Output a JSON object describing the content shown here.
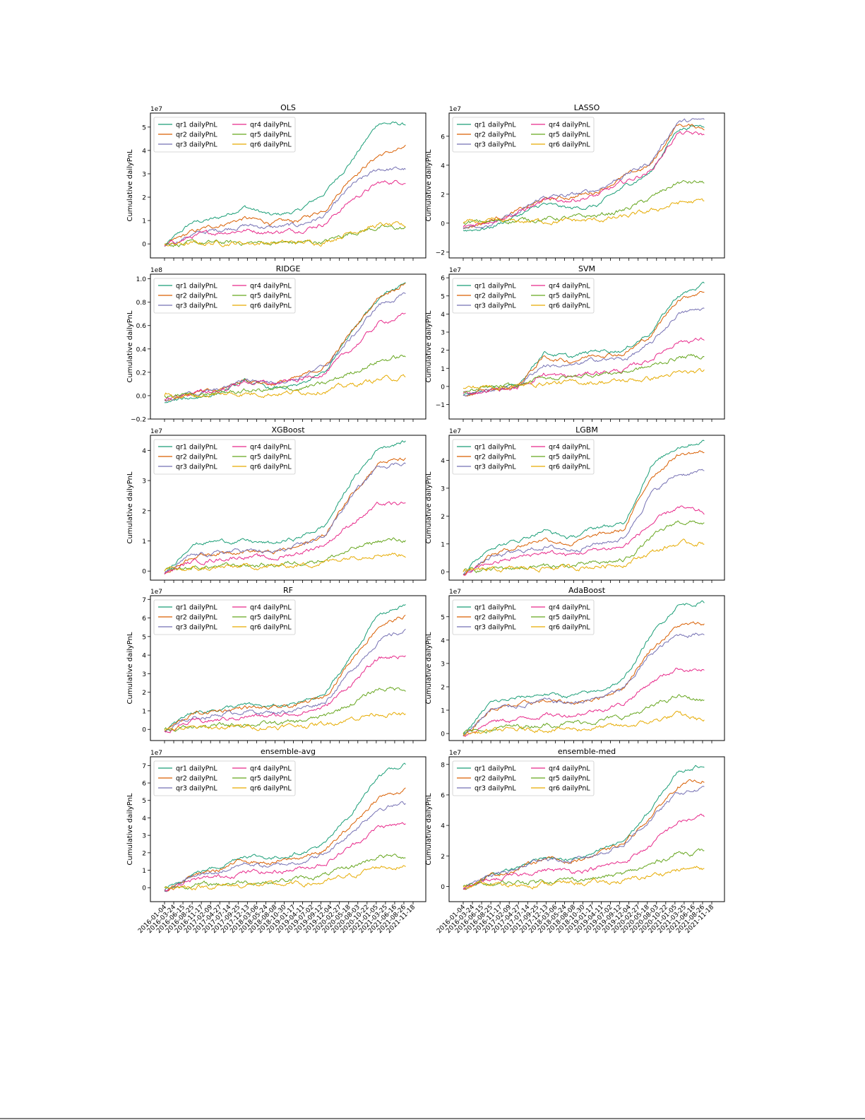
{
  "series_names": [
    "qr1 dailyPnL",
    "qr2 dailyPnL",
    "qr3 dailyPnL",
    "qr4 dailyPnL",
    "qr5 dailyPnL",
    "qr6 dailyPnL"
  ],
  "colors": [
    "#1b9e77",
    "#d95f02",
    "#7570b3",
    "#e7298a",
    "#66a61e",
    "#e6ab02"
  ],
  "ylabel": "Cumulative dailyPnL",
  "x_tick_labels": [
    "2016-01-04",
    "2016-03-24",
    "2016-06-15",
    "2016-08-25",
    "2016-11-17",
    "2017-02-09",
    "2017-04-27",
    "2017-07-14",
    "2017-09-25",
    "2017-12-13",
    "2018-03-06",
    "2018-05-24",
    "2018-08-08",
    "2018-10-30",
    "2019-01-17",
    "2019-04-11",
    "2019-07-02",
    "2019-09-12",
    "2019-12-04",
    "2020-02-27",
    "2020-05-18",
    "2020-08-03",
    "2020-10-22",
    "2021-01-05",
    "2021-03-25",
    "2021-06-16",
    "2021-08-26",
    "2021-11-18"
  ],
  "chart_data": [
    {
      "type": "line",
      "title": "OLS",
      "ylabel": "Cumulative dailyPnL",
      "offset_text": "1e7",
      "ylim": [
        -0.6,
        5.6
      ],
      "yticks": [
        0,
        1,
        2,
        3,
        4,
        5
      ],
      "legend": "upper left",
      "series": [
        {
          "name": "qr1 dailyPnL",
          "values": [
            -0.1,
            0.9,
            1.1,
            1.6,
            1.2,
            1.4,
            2.2,
            3.6,
            5.2,
            5.1
          ]
        },
        {
          "name": "qr2 dailyPnL",
          "values": [
            -0.1,
            0.5,
            0.8,
            1.1,
            0.9,
            1.0,
            1.5,
            2.9,
            3.8,
            4.1
          ]
        },
        {
          "name": "qr3 dailyPnL",
          "values": [
            -0.1,
            0.4,
            0.6,
            0.8,
            0.7,
            0.8,
            1.2,
            2.5,
            3.2,
            3.2
          ]
        },
        {
          "name": "qr4 dailyPnL",
          "values": [
            -0.1,
            0.3,
            0.5,
            0.6,
            0.5,
            0.6,
            0.9,
            1.9,
            2.6,
            2.7
          ]
        },
        {
          "name": "qr5 dailyPnL",
          "values": [
            0.0,
            0.0,
            0.05,
            0.05,
            0.05,
            0.05,
            0.1,
            0.5,
            0.7,
            0.65
          ]
        },
        {
          "name": "qr6 dailyPnL",
          "values": [
            0.0,
            0.0,
            0.05,
            0.05,
            0.05,
            0.05,
            0.1,
            0.55,
            0.8,
            0.75
          ]
        }
      ]
    },
    {
      "type": "line",
      "title": "LASSO",
      "ylabel": "Cumulative dailyPnL",
      "offset_text": "1e7",
      "ylim": [
        -2.4,
        7.6
      ],
      "yticks": [
        -2,
        0,
        2,
        4,
        6
      ],
      "legend": "upper left",
      "series": [
        {
          "name": "qr1 dailyPnL",
          "values": [
            -0.5,
            -0.3,
            0.5,
            1.3,
            1.0,
            1.2,
            2.5,
            3.5,
            6.5,
            6.8
          ]
        },
        {
          "name": "qr2 dailyPnL",
          "values": [
            -0.4,
            0.2,
            0.8,
            1.6,
            1.8,
            2.2,
            3.2,
            4.0,
            6.8,
            6.6
          ]
        },
        {
          "name": "qr3 dailyPnL",
          "values": [
            -0.4,
            0.0,
            0.6,
            1.8,
            1.9,
            2.3,
            3.3,
            4.2,
            7.0,
            7.1
          ]
        },
        {
          "name": "qr4 dailyPnL",
          "values": [
            -0.3,
            0.2,
            0.7,
            1.5,
            1.6,
            1.9,
            2.8,
            3.6,
            6.2,
            6.1
          ]
        },
        {
          "name": "qr5 dailyPnL",
          "values": [
            0.0,
            0.1,
            0.2,
            0.3,
            0.35,
            0.5,
            0.9,
            1.7,
            2.8,
            2.8
          ]
        },
        {
          "name": "qr6 dailyPnL",
          "values": [
            0.0,
            0.05,
            0.1,
            0.15,
            0.15,
            0.2,
            0.4,
            0.8,
            1.4,
            1.5
          ]
        }
      ]
    },
    {
      "type": "line",
      "title": "RIDGE",
      "ylabel": "Cumulative dailyPnL",
      "offset_text": "1e8",
      "ylim": [
        -0.2,
        1.04
      ],
      "yticks": [
        -0.2,
        0.0,
        0.2,
        0.4,
        0.6,
        0.8,
        1.0
      ],
      "legend": "upper left",
      "series": [
        {
          "name": "qr1 dailyPnL",
          "values": [
            -0.06,
            -0.02,
            0.02,
            0.12,
            0.06,
            0.08,
            0.2,
            0.55,
            0.85,
            0.98
          ]
        },
        {
          "name": "qr2 dailyPnL",
          "values": [
            -0.04,
            0.02,
            0.04,
            0.14,
            0.1,
            0.15,
            0.25,
            0.55,
            0.85,
            0.97
          ]
        },
        {
          "name": "qr3 dailyPnL",
          "values": [
            -0.04,
            0.02,
            0.04,
            0.14,
            0.12,
            0.15,
            0.25,
            0.5,
            0.78,
            0.86
          ]
        },
        {
          "name": "qr4 dailyPnL",
          "values": [
            -0.03,
            0.02,
            0.04,
            0.12,
            0.1,
            0.13,
            0.2,
            0.4,
            0.62,
            0.69
          ]
        },
        {
          "name": "qr5 dailyPnL",
          "values": [
            0.0,
            0.01,
            0.02,
            0.04,
            0.05,
            0.06,
            0.1,
            0.2,
            0.3,
            0.34
          ]
        },
        {
          "name": "qr6 dailyPnL",
          "values": [
            0.0,
            0.0,
            0.01,
            0.02,
            0.02,
            0.03,
            0.05,
            0.09,
            0.14,
            0.16
          ]
        }
      ]
    },
    {
      "type": "line",
      "title": "SVM",
      "ylabel": "Cumulative dailyPnL",
      "offset_text": "1e7",
      "ylim": [
        -1.8,
        6.2
      ],
      "yticks": [
        -1,
        0,
        1,
        2,
        3,
        4,
        5,
        6
      ],
      "legend": "upper left",
      "series": [
        {
          "name": "qr1 dailyPnL",
          "values": [
            -0.5,
            -0.2,
            0.0,
            1.9,
            1.6,
            2.0,
            2.0,
            3.0,
            5.0,
            5.6
          ]
        },
        {
          "name": "qr2 dailyPnL",
          "values": [
            -0.5,
            -0.2,
            0.0,
            1.6,
            1.4,
            1.8,
            1.8,
            2.8,
            4.8,
            5.3
          ]
        },
        {
          "name": "qr3 dailyPnL",
          "values": [
            -0.5,
            -0.2,
            0.0,
            1.2,
            1.1,
            1.5,
            1.5,
            2.3,
            4.0,
            4.3
          ]
        },
        {
          "name": "qr4 dailyPnL",
          "values": [
            -0.4,
            -0.2,
            -0.1,
            0.7,
            0.5,
            0.8,
            0.9,
            1.5,
            2.5,
            2.6
          ]
        },
        {
          "name": "qr5 dailyPnL",
          "values": [
            -0.3,
            -0.1,
            0.0,
            0.5,
            0.5,
            0.7,
            0.8,
            1.1,
            1.6,
            1.7
          ]
        },
        {
          "name": "qr6 dailyPnL",
          "values": [
            -0.1,
            0.0,
            0.0,
            0.2,
            0.2,
            0.25,
            0.3,
            0.45,
            0.7,
            0.8
          ]
        }
      ]
    },
    {
      "type": "line",
      "title": "XGBoost",
      "ylabel": "Cumulative dailyPnL",
      "offset_text": "1e7",
      "ylim": [
        -0.3,
        4.5
      ],
      "yticks": [
        0,
        1,
        2,
        3,
        4
      ],
      "legend": "upper left",
      "series": [
        {
          "name": "qr1 dailyPnL",
          "values": [
            -0.1,
            0.9,
            1.0,
            1.0,
            0.9,
            1.1,
            1.5,
            3.0,
            4.1,
            4.3
          ]
        },
        {
          "name": "qr2 dailyPnL",
          "values": [
            -0.1,
            0.5,
            0.6,
            0.7,
            0.6,
            0.8,
            1.2,
            2.6,
            3.6,
            3.7
          ]
        },
        {
          "name": "qr3 dailyPnL",
          "values": [
            -0.1,
            0.5,
            0.6,
            0.7,
            0.6,
            0.8,
            1.2,
            2.5,
            3.5,
            3.6
          ]
        },
        {
          "name": "qr4 dailyPnL",
          "values": [
            -0.1,
            0.3,
            0.4,
            0.5,
            0.4,
            0.6,
            0.9,
            1.6,
            2.2,
            2.2
          ]
        },
        {
          "name": "qr5 dailyPnL",
          "values": [
            0.0,
            0.1,
            0.15,
            0.2,
            0.2,
            0.3,
            0.4,
            0.7,
            1.0,
            1.05
          ]
        },
        {
          "name": "qr6 dailyPnL",
          "values": [
            0.0,
            0.05,
            0.1,
            0.15,
            0.15,
            0.2,
            0.3,
            0.5,
            0.6,
            0.55
          ]
        }
      ]
    },
    {
      "type": "line",
      "title": "LGBM",
      "ylabel": "Cumulative dailyPnL",
      "offset_text": "1e7",
      "ylim": [
        -0.3,
        4.9
      ],
      "yticks": [
        0,
        1,
        2,
        3,
        4
      ],
      "legend": "upper left",
      "series": [
        {
          "name": "qr1 dailyPnL",
          "values": [
            -0.1,
            0.9,
            1.1,
            1.5,
            1.2,
            1.6,
            1.7,
            3.8,
            4.5,
            4.7
          ]
        },
        {
          "name": "qr2 dailyPnL",
          "values": [
            -0.1,
            0.6,
            0.9,
            1.2,
            1.0,
            1.3,
            1.5,
            3.4,
            4.2,
            4.3
          ]
        },
        {
          "name": "qr3 dailyPnL",
          "values": [
            -0.1,
            0.5,
            0.7,
            0.9,
            0.8,
            1.0,
            1.2,
            2.8,
            3.5,
            3.6
          ]
        },
        {
          "name": "qr4 dailyPnL",
          "values": [
            -0.1,
            0.3,
            0.5,
            0.7,
            0.6,
            0.8,
            0.9,
            1.7,
            2.3,
            2.1
          ]
        },
        {
          "name": "qr5 dailyPnL",
          "values": [
            0.0,
            0.1,
            0.15,
            0.2,
            0.2,
            0.3,
            0.4,
            1.2,
            1.8,
            1.75
          ]
        },
        {
          "name": "qr6 dailyPnL",
          "values": [
            0.0,
            0.05,
            0.1,
            0.15,
            0.15,
            0.2,
            0.3,
            0.7,
            1.0,
            1.05
          ]
        }
      ]
    },
    {
      "type": "line",
      "title": "RF",
      "ylabel": "Cumulative dailyPnL",
      "offset_text": "1e7",
      "ylim": [
        -0.6,
        7.2
      ],
      "yticks": [
        0,
        1,
        2,
        3,
        4,
        5,
        6,
        7
      ],
      "legend": "upper left",
      "series": [
        {
          "name": "qr1 dailyPnL",
          "values": [
            -0.1,
            0.9,
            1.1,
            1.3,
            1.2,
            1.4,
            1.9,
            4.0,
            6.2,
            6.7
          ]
        },
        {
          "name": "qr2 dailyPnL",
          "values": [
            -0.1,
            0.8,
            1.0,
            1.2,
            1.1,
            1.3,
            1.8,
            3.8,
            5.6,
            6.1
          ]
        },
        {
          "name": "qr3 dailyPnL",
          "values": [
            -0.1,
            0.6,
            0.8,
            1.0,
            0.9,
            1.1,
            1.5,
            3.2,
            4.8,
            5.3
          ]
        },
        {
          "name": "qr4 dailyPnL",
          "values": [
            -0.1,
            0.4,
            0.5,
            0.7,
            0.7,
            0.9,
            1.2,
            2.5,
            3.8,
            4.0
          ]
        },
        {
          "name": "qr5 dailyPnL",
          "values": [
            0.0,
            0.1,
            0.2,
            0.3,
            0.3,
            0.4,
            0.7,
            1.4,
            2.2,
            2.2
          ]
        },
        {
          "name": "qr6 dailyPnL",
          "values": [
            0.0,
            0.05,
            0.1,
            0.15,
            0.15,
            0.2,
            0.3,
            0.6,
            0.9,
            0.75
          ]
        }
      ]
    },
    {
      "type": "line",
      "title": "AdaBoost",
      "ylabel": "Cumulative dailyPnL",
      "offset_text": "1e7",
      "ylim": [
        -0.3,
        5.9
      ],
      "yticks": [
        0,
        1,
        2,
        3,
        4,
        5
      ],
      "legend": "upper left",
      "series": [
        {
          "name": "qr1 dailyPnL",
          "values": [
            -0.1,
            1.3,
            1.5,
            1.7,
            1.6,
            1.8,
            2.3,
            4.2,
            5.5,
            5.6
          ]
        },
        {
          "name": "qr2 dailyPnL",
          "values": [
            -0.1,
            1.0,
            1.2,
            1.4,
            1.3,
            1.5,
            2.0,
            3.6,
            4.6,
            4.7
          ]
        },
        {
          "name": "qr3 dailyPnL",
          "values": [
            -0.1,
            1.0,
            1.2,
            1.4,
            1.3,
            1.5,
            1.9,
            3.4,
            4.2,
            4.3
          ]
        },
        {
          "name": "qr4 dailyPnL",
          "values": [
            -0.1,
            0.5,
            0.6,
            0.8,
            0.8,
            1.0,
            1.3,
            2.2,
            2.8,
            2.7
          ]
        },
        {
          "name": "qr5 dailyPnL",
          "values": [
            0.0,
            0.2,
            0.3,
            0.4,
            0.45,
            0.55,
            0.7,
            1.1,
            1.6,
            1.4
          ]
        },
        {
          "name": "qr6 dailyPnL",
          "values": [
            0.0,
            0.1,
            0.15,
            0.2,
            0.2,
            0.25,
            0.3,
            0.5,
            0.8,
            0.55
          ]
        }
      ]
    },
    {
      "type": "line",
      "title": "ensemble-avg",
      "ylabel": "Cumulative dailyPnL",
      "offset_text": "1e7",
      "ylim": [
        -0.8,
        7.5
      ],
      "yticks": [
        0,
        1,
        2,
        3,
        4,
        5,
        6,
        7
      ],
      "legend": "upper left",
      "series": [
        {
          "name": "qr1 dailyPnL",
          "values": [
            -0.2,
            0.8,
            1.2,
            1.9,
            1.7,
            2.0,
            2.5,
            4.3,
            6.5,
            7.0
          ]
        },
        {
          "name": "qr2 dailyPnL",
          "values": [
            -0.2,
            0.7,
            1.0,
            1.6,
            1.4,
            1.7,
            2.1,
            3.6,
            5.2,
            5.6
          ]
        },
        {
          "name": "qr3 dailyPnL",
          "values": [
            -0.2,
            0.6,
            0.9,
            1.4,
            1.2,
            1.5,
            1.9,
            3.2,
            4.6,
            4.8
          ]
        },
        {
          "name": "qr4 dailyPnL",
          "values": [
            -0.1,
            0.4,
            0.6,
            0.9,
            0.9,
            1.1,
            1.4,
            2.4,
            3.5,
            3.6
          ]
        },
        {
          "name": "qr5 dailyPnL",
          "values": [
            0.0,
            0.15,
            0.2,
            0.35,
            0.35,
            0.5,
            0.7,
            1.2,
            1.8,
            1.8
          ]
        },
        {
          "name": "qr6 dailyPnL",
          "values": [
            0.0,
            0.05,
            0.1,
            0.15,
            0.15,
            0.2,
            0.3,
            0.7,
            1.2,
            1.2
          ]
        }
      ]
    },
    {
      "type": "line",
      "title": "ensemble-med",
      "ylabel": "Cumulative dailyPnL",
      "offset_text": "1e7",
      "ylim": [
        -1.0,
        8.5
      ],
      "yticks": [
        0,
        2,
        4,
        6,
        8
      ],
      "legend": "upper left",
      "series": [
        {
          "name": "qr1 dailyPnL",
          "values": [
            -0.2,
            0.8,
            1.2,
            2.0,
            1.7,
            2.2,
            3.0,
            5.0,
            7.5,
            8.0
          ]
        },
        {
          "name": "qr2 dailyPnL",
          "values": [
            -0.2,
            0.7,
            1.1,
            1.9,
            1.6,
            2.1,
            2.8,
            4.6,
            6.6,
            7.0
          ]
        },
        {
          "name": "qr3 dailyPnL",
          "values": [
            -0.2,
            0.7,
            1.1,
            1.9,
            1.6,
            2.1,
            2.8,
            4.4,
            6.1,
            6.4
          ]
        },
        {
          "name": "qr4 dailyPnL",
          "values": [
            -0.1,
            0.4,
            0.7,
            1.1,
            1.0,
            1.2,
            1.6,
            2.7,
            4.2,
            4.6
          ]
        },
        {
          "name": "qr5 dailyPnL",
          "values": [
            0.0,
            0.15,
            0.25,
            0.4,
            0.45,
            0.55,
            0.8,
            1.4,
            2.2,
            2.3
          ]
        },
        {
          "name": "qr6 dailyPnL",
          "values": [
            0.0,
            0.05,
            0.1,
            0.2,
            0.2,
            0.25,
            0.35,
            0.7,
            1.1,
            1.2
          ]
        }
      ]
    }
  ]
}
